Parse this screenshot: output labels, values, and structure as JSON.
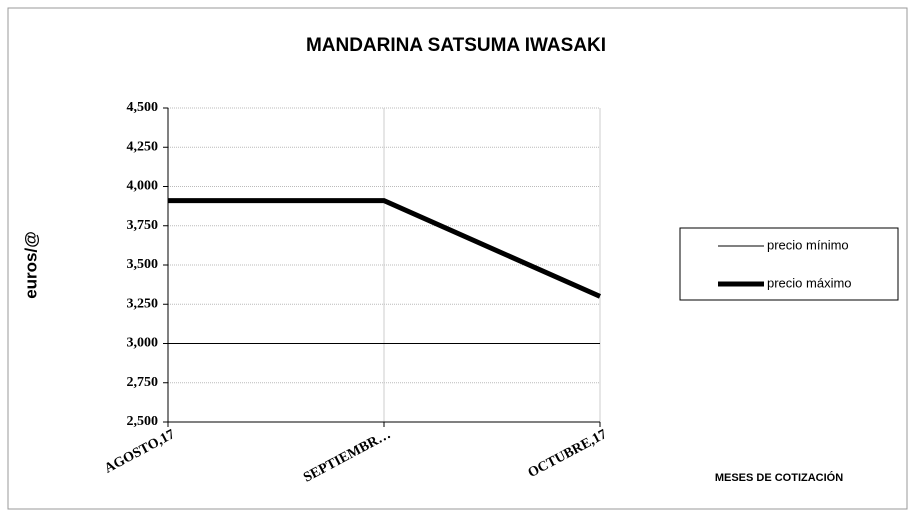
{
  "chart_data": {
    "type": "line",
    "title": "MANDARINA SATSUMA IWASAKI",
    "y_label": "euros/@",
    "x_label": "MESES DE COTIZACIÓN",
    "categories": [
      "AGOSTO,17",
      "SEPTIEMBR…",
      "OCTUBRE,17"
    ],
    "series": [
      {
        "name": "precio mínimo",
        "color": "#000000",
        "linewidth": 1,
        "values": [
          3.0,
          3.0,
          3.0
        ]
      },
      {
        "name": "precio máximo",
        "color": "#000000",
        "linewidth": 5,
        "values": [
          3.91,
          3.91,
          3.3
        ]
      }
    ],
    "ylim": [
      2.5,
      4.5
    ],
    "yticks": [
      {
        "value": 2.5,
        "label": "2,500"
      },
      {
        "value": 2.75,
        "label": "2,750"
      },
      {
        "value": 3.0,
        "label": "3,000"
      },
      {
        "value": 3.25,
        "label": "3,250"
      },
      {
        "value": 3.5,
        "label": "3,500"
      },
      {
        "value": 3.75,
        "label": "3,750"
      },
      {
        "value": 4.0,
        "label": "4,000"
      },
      {
        "value": 4.25,
        "label": "4,250"
      },
      {
        "value": 4.5,
        "label": "4,500"
      }
    ],
    "grid": true,
    "legend": "right"
  }
}
